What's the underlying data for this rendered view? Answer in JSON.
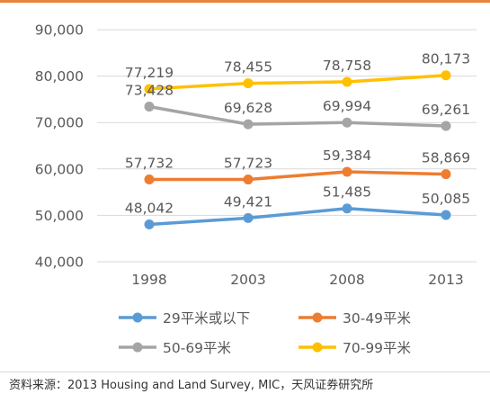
{
  "chart_data": {
    "type": "line",
    "categories": [
      "1998",
      "2003",
      "2008",
      "2013"
    ],
    "ylim": [
      40000,
      90000
    ],
    "yticks": [
      "40,000",
      "50,000",
      "60,000",
      "70,000",
      "80,000",
      "90,000"
    ],
    "grid": true,
    "legend_position": "bottom",
    "series": [
      {
        "name": "29平米或以下",
        "color": "#5b9bd5",
        "values": [
          48042,
          49421,
          51485,
          50085
        ],
        "labels": [
          "48,042",
          "49,421",
          "51,485",
          "50,085"
        ]
      },
      {
        "name": "30-49平米",
        "color": "#ed7d31",
        "values": [
          57732,
          57723,
          59384,
          58869
        ],
        "labels": [
          "57,732",
          "57,723",
          "59,384",
          "58,869"
        ]
      },
      {
        "name": "50-69平米",
        "color": "#a5a5a5",
        "values": [
          73428,
          69628,
          69994,
          69261
        ],
        "labels": [
          "73,428",
          "69,628",
          "69,994",
          "69,261"
        ]
      },
      {
        "name": "70-99平米",
        "color": "#ffc000",
        "values": [
          77219,
          78455,
          78758,
          80173
        ],
        "labels": [
          "77,219",
          "78,455",
          "78,758",
          "80,173"
        ]
      }
    ]
  },
  "source_text": "资料来源：2013 Housing and Land Survey, MIC，天风证券研究所"
}
